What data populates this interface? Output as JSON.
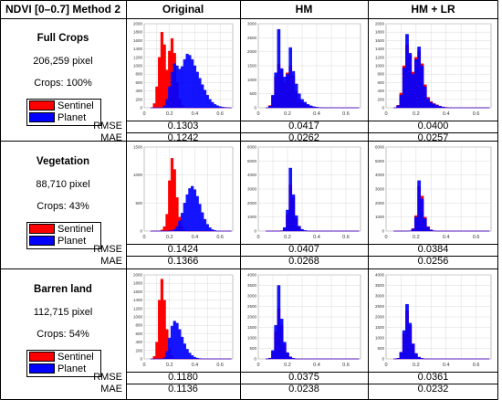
{
  "header": {
    "corner": "NDVI [0–0.7] Method 2",
    "columns": [
      "Original",
      "HM",
      "HM + LR"
    ]
  },
  "legend": {
    "sentinel": "Sentinel",
    "planet": "Planet",
    "sentinel_color": "#ff0000",
    "planet_color": "#0000ff"
  },
  "metric_labels": {
    "rmse": "RMSE",
    "mae": "MAE"
  },
  "rows": [
    {
      "title": "Full Crops",
      "pixels": "206,259 pixel",
      "crops": "Crops: 100%",
      "rmse": [
        "0.1303",
        "0.0417",
        "0.0400"
      ],
      "mae": [
        "0.1242",
        "0.0262",
        "0.0257"
      ]
    },
    {
      "title": "Vegetation",
      "pixels": "88,710 pixel",
      "crops": "Crops: 43%",
      "rmse": [
        "0.1424",
        "0.0407",
        "0.0384"
      ],
      "mae": [
        "0.1366",
        "0.0268",
        "0.0256"
      ]
    },
    {
      "title": "Barren land",
      "pixels": "112,715 pixel",
      "crops": "Crops: 54%",
      "rmse": [
        "0.1180",
        "0.0375",
        "0.0361"
      ],
      "mae": [
        "0.1136",
        "0.0238",
        "0.0232"
      ]
    }
  ],
  "chart_data": [
    {
      "type": "area",
      "row": "Full Crops",
      "column": "Original",
      "xlim": [
        0,
        0.7
      ],
      "ylim": [
        0,
        2000
      ],
      "yticks": [
        0,
        200,
        400,
        600,
        800,
        1000,
        1200,
        1400,
        1600,
        1800,
        2000
      ],
      "xticks": [
        0,
        0.2,
        0.4,
        0.6
      ],
      "grid": true,
      "x": [
        0.06,
        0.08,
        0.1,
        0.12,
        0.14,
        0.16,
        0.18,
        0.2,
        0.22,
        0.24,
        0.26,
        0.28,
        0.3,
        0.32,
        0.34,
        0.36,
        0.38,
        0.4,
        0.42,
        0.44,
        0.46,
        0.48,
        0.5,
        0.52,
        0.54,
        0.56,
        0.58,
        0.6,
        0.62,
        0.64,
        0.66,
        0.68
      ],
      "series": [
        {
          "name": "Sentinel",
          "values": [
            0,
            100,
            500,
            1200,
            1800,
            1500,
            900,
            1350,
            1650,
            1300,
            600,
            200,
            60,
            20,
            0,
            0,
            0,
            0,
            0,
            0,
            0,
            0,
            0,
            0,
            0,
            0,
            0,
            0,
            0,
            0,
            0,
            0
          ]
        },
        {
          "name": "Planet",
          "values": [
            0,
            0,
            0,
            0,
            0,
            50,
            200,
            500,
            850,
            1050,
            1000,
            920,
            980,
            1150,
            1280,
            1250,
            1150,
            1000,
            850,
            700,
            550,
            420,
            300,
            200,
            130,
            80,
            50,
            30,
            15,
            8,
            0,
            0
          ]
        }
      ]
    },
    {
      "type": "area",
      "row": "Full Crops",
      "column": "HM",
      "xlim": [
        0,
        0.7
      ],
      "ylim": [
        0,
        3000
      ],
      "yticks": [
        0,
        500,
        1000,
        1500,
        2000,
        2500,
        3000
      ],
      "xticks": [
        0,
        0.2,
        0.4,
        0.6
      ],
      "grid": true,
      "x": [
        0.06,
        0.08,
        0.1,
        0.12,
        0.14,
        0.16,
        0.18,
        0.2,
        0.22,
        0.24,
        0.26,
        0.28,
        0.3,
        0.32,
        0.34,
        0.36,
        0.38,
        0.4,
        0.42,
        0.44,
        0.46,
        0.48,
        0.5,
        0.52,
        0.54,
        0.56,
        0.58,
        0.6,
        0.62,
        0.64,
        0.66,
        0.68
      ],
      "series": [
        {
          "name": "Sentinel",
          "values": [
            0,
            80,
            400,
            1100,
            1550,
            1350,
            900,
            1250,
            1500,
            1150,
            600,
            300,
            200,
            150,
            100,
            60,
            30,
            15,
            5,
            0,
            0,
            0,
            0,
            0,
            0,
            0,
            0,
            0,
            0,
            0,
            0,
            0
          ]
        },
        {
          "name": "Planet",
          "values": [
            0,
            60,
            450,
            1250,
            2800,
            1400,
            1100,
            1200,
            2150,
            1300,
            850,
            500,
            300,
            200,
            120,
            70,
            40,
            20,
            10,
            5,
            0,
            0,
            0,
            0,
            0,
            0,
            0,
            0,
            0,
            0,
            0,
            0
          ]
        }
      ]
    },
    {
      "type": "area",
      "row": "Full Crops",
      "column": "HM + LR",
      "xlim": [
        0,
        0.7
      ],
      "ylim": [
        0,
        2000
      ],
      "yticks": [
        0,
        200,
        400,
        600,
        800,
        1000,
        1200,
        1400,
        1600,
        1800,
        2000
      ],
      "xticks": [
        0,
        0.2,
        0.4,
        0.6
      ],
      "grid": true,
      "x": [
        0.06,
        0.08,
        0.1,
        0.12,
        0.14,
        0.16,
        0.18,
        0.2,
        0.22,
        0.24,
        0.26,
        0.28,
        0.3,
        0.32,
        0.34,
        0.36,
        0.38,
        0.4,
        0.42,
        0.44,
        0.46,
        0.48,
        0.5,
        0.52,
        0.54,
        0.56,
        0.58,
        0.6,
        0.62,
        0.64,
        0.66,
        0.68
      ],
      "series": [
        {
          "name": "Sentinel",
          "values": [
            0,
            60,
            350,
            1000,
            1500,
            1250,
            850,
            1200,
            1350,
            1050,
            550,
            250,
            150,
            100,
            70,
            40,
            20,
            10,
            5,
            0,
            0,
            0,
            0,
            0,
            0,
            0,
            0,
            0,
            0,
            0,
            0,
            0
          ]
        },
        {
          "name": "Planet",
          "values": [
            0,
            50,
            300,
            950,
            1750,
            1300,
            800,
            1150,
            1450,
            1000,
            500,
            220,
            130,
            90,
            60,
            35,
            18,
            8,
            3,
            0,
            0,
            0,
            0,
            0,
            0,
            0,
            0,
            0,
            0,
            0,
            0,
            0
          ]
        }
      ]
    },
    {
      "type": "area",
      "row": "Vegetation",
      "column": "Original",
      "xlim": [
        0,
        0.7
      ],
      "ylim": [
        0,
        1500
      ],
      "yticks": [
        0,
        500,
        1000,
        1500
      ],
      "xticks": [
        0,
        0.2,
        0.4,
        0.6
      ],
      "grid": true,
      "x": [
        0.06,
        0.08,
        0.1,
        0.12,
        0.14,
        0.16,
        0.18,
        0.2,
        0.22,
        0.24,
        0.26,
        0.28,
        0.3,
        0.32,
        0.34,
        0.36,
        0.38,
        0.4,
        0.42,
        0.44,
        0.46,
        0.48,
        0.5,
        0.52,
        0.54,
        0.56,
        0.58,
        0.6,
        0.62,
        0.64,
        0.66,
        0.68
      ],
      "series": [
        {
          "name": "Sentinel",
          "values": [
            0,
            0,
            0,
            0,
            20,
            80,
            300,
            900,
            1300,
            1100,
            600,
            250,
            80,
            20,
            0,
            0,
            0,
            0,
            0,
            0,
            0,
            0,
            0,
            0,
            0,
            0,
            0,
            0,
            0,
            0,
            0,
            0
          ]
        },
        {
          "name": "Planet",
          "values": [
            0,
            0,
            0,
            0,
            0,
            0,
            0,
            0,
            10,
            30,
            80,
            180,
            320,
            500,
            650,
            760,
            800,
            740,
            620,
            480,
            330,
            210,
            120,
            60,
            25,
            10,
            0,
            0,
            0,
            0,
            0,
            0
          ]
        }
      ]
    },
    {
      "type": "area",
      "row": "Vegetation",
      "column": "HM",
      "xlim": [
        0,
        0.7
      ],
      "ylim": [
        0,
        6000
      ],
      "yticks": [
        0,
        1000,
        2000,
        3000,
        4000,
        5000,
        6000
      ],
      "xticks": [
        0,
        0.2,
        0.4,
        0.6
      ],
      "grid": true,
      "x": [
        0.06,
        0.08,
        0.1,
        0.12,
        0.14,
        0.16,
        0.18,
        0.2,
        0.22,
        0.24,
        0.26,
        0.28,
        0.3,
        0.32,
        0.34,
        0.36,
        0.38,
        0.4,
        0.42,
        0.44,
        0.46,
        0.48,
        0.5,
        0.52,
        0.54,
        0.56,
        0.58,
        0.6,
        0.62,
        0.64,
        0.66,
        0.68
      ],
      "series": [
        {
          "name": "Sentinel",
          "values": [
            0,
            0,
            0,
            0,
            0,
            30,
            200,
            1200,
            3300,
            2400,
            900,
            300,
            80,
            20,
            0,
            0,
            0,
            0,
            0,
            0,
            0,
            0,
            0,
            0,
            0,
            0,
            0,
            0,
            0,
            0,
            0,
            0
          ]
        },
        {
          "name": "Planet",
          "values": [
            0,
            0,
            0,
            0,
            0,
            20,
            250,
            1500,
            4500,
            2600,
            1100,
            350,
            120,
            40,
            10,
            0,
            0,
            0,
            0,
            0,
            0,
            0,
            0,
            0,
            0,
            0,
            0,
            0,
            0,
            0,
            0,
            0
          ]
        }
      ]
    },
    {
      "type": "area",
      "row": "Vegetation",
      "column": "HM + LR",
      "xlim": [
        0,
        0.7
      ],
      "ylim": [
        0,
        6000
      ],
      "yticks": [
        0,
        1000,
        2000,
        3000,
        4000,
        5000,
        6000
      ],
      "xticks": [
        0,
        0.2,
        0.4,
        0.6
      ],
      "grid": true,
      "x": [
        0.06,
        0.08,
        0.1,
        0.12,
        0.14,
        0.16,
        0.18,
        0.2,
        0.22,
        0.24,
        0.26,
        0.28,
        0.3,
        0.32,
        0.34,
        0.36,
        0.38,
        0.4,
        0.42,
        0.44,
        0.46,
        0.48,
        0.5,
        0.52,
        0.54,
        0.56,
        0.58,
        0.6,
        0.62,
        0.64,
        0.66,
        0.68
      ],
      "series": [
        {
          "name": "Sentinel",
          "values": [
            0,
            0,
            0,
            0,
            0,
            20,
            180,
            1100,
            3200,
            2500,
            1000,
            320,
            90,
            25,
            0,
            0,
            0,
            0,
            0,
            0,
            0,
            0,
            0,
            0,
            0,
            0,
            0,
            0,
            0,
            0,
            0,
            0
          ]
        },
        {
          "name": "Planet",
          "values": [
            0,
            0,
            0,
            0,
            0,
            15,
            150,
            1000,
            3600,
            2300,
            900,
            280,
            80,
            20,
            0,
            0,
            0,
            0,
            0,
            0,
            0,
            0,
            0,
            0,
            0,
            0,
            0,
            0,
            0,
            0,
            0,
            0
          ]
        }
      ]
    },
    {
      "type": "area",
      "row": "Barren land",
      "column": "Original",
      "xlim": [
        0,
        0.7
      ],
      "ylim": [
        0,
        2000
      ],
      "yticks": [
        0,
        200,
        400,
        600,
        800,
        1000,
        1200,
        1400,
        1600,
        1800,
        2000
      ],
      "xticks": [
        0,
        0.2,
        0.4,
        0.6
      ],
      "grid": true,
      "x": [
        0.06,
        0.08,
        0.1,
        0.12,
        0.14,
        0.16,
        0.18,
        0.2,
        0.22,
        0.24,
        0.26,
        0.28,
        0.3,
        0.32,
        0.34,
        0.36,
        0.38,
        0.4,
        0.42,
        0.44,
        0.46,
        0.48,
        0.5,
        0.52,
        0.54,
        0.56,
        0.58,
        0.6,
        0.62,
        0.64,
        0.66,
        0.68
      ],
      "series": [
        {
          "name": "Sentinel",
          "values": [
            0,
            60,
            400,
            1400,
            1900,
            1400,
            700,
            250,
            80,
            20,
            0,
            0,
            0,
            0,
            0,
            0,
            0,
            0,
            0,
            0,
            0,
            0,
            0,
            0,
            0,
            0,
            0,
            0,
            0,
            0,
            0,
            0
          ]
        },
        {
          "name": "Planet",
          "values": [
            0,
            0,
            0,
            0,
            0,
            30,
            180,
            500,
            780,
            900,
            850,
            700,
            520,
            360,
            230,
            140,
            80,
            40,
            20,
            8,
            0,
            0,
            0,
            0,
            0,
            0,
            0,
            0,
            0,
            0,
            0,
            0
          ]
        }
      ]
    },
    {
      "type": "area",
      "row": "Barren land",
      "column": "HM",
      "xlim": [
        0,
        0.7
      ],
      "ylim": [
        0,
        4000
      ],
      "yticks": [
        0,
        500,
        1000,
        1500,
        2000,
        2500,
        3000,
        3500,
        4000
      ],
      "xticks": [
        0,
        0.2,
        0.4,
        0.6
      ],
      "grid": true,
      "x": [
        0.06,
        0.08,
        0.1,
        0.12,
        0.14,
        0.16,
        0.18,
        0.2,
        0.22,
        0.24,
        0.26,
        0.28,
        0.3,
        0.32,
        0.34,
        0.36,
        0.38,
        0.4,
        0.42,
        0.44,
        0.46,
        0.48,
        0.5,
        0.52,
        0.54,
        0.56,
        0.58,
        0.6,
        0.62,
        0.64,
        0.66,
        0.68
      ],
      "series": [
        {
          "name": "Sentinel",
          "values": [
            0,
            40,
            350,
            1300,
            2400,
            1600,
            700,
            250,
            80,
            25,
            0,
            0,
            0,
            0,
            0,
            0,
            0,
            0,
            0,
            0,
            0,
            0,
            0,
            0,
            0,
            0,
            0,
            0,
            0,
            0,
            0,
            0
          ]
        },
        {
          "name": "Planet",
          "values": [
            0,
            30,
            400,
            1600,
            3500,
            1900,
            800,
            300,
            100,
            30,
            0,
            0,
            0,
            0,
            0,
            0,
            0,
            0,
            0,
            0,
            0,
            0,
            0,
            0,
            0,
            0,
            0,
            0,
            0,
            0,
            0,
            0
          ]
        }
      ]
    },
    {
      "type": "area",
      "row": "Barren land",
      "column": "HM + LR",
      "xlim": [
        0,
        0.7
      ],
      "ylim": [
        0,
        4000
      ],
      "yticks": [
        0,
        500,
        1000,
        1500,
        2000,
        2500,
        3000,
        3500,
        4000
      ],
      "xticks": [
        0,
        0.2,
        0.4,
        0.6
      ],
      "grid": true,
      "x": [
        0.06,
        0.08,
        0.1,
        0.12,
        0.14,
        0.16,
        0.18,
        0.2,
        0.22,
        0.24,
        0.26,
        0.28,
        0.3,
        0.32,
        0.34,
        0.36,
        0.38,
        0.4,
        0.42,
        0.44,
        0.46,
        0.48,
        0.5,
        0.52,
        0.54,
        0.56,
        0.58,
        0.6,
        0.62,
        0.64,
        0.66,
        0.68
      ],
      "series": [
        {
          "name": "Sentinel",
          "values": [
            0,
            30,
            300,
            1200,
            2300,
            1600,
            700,
            250,
            80,
            25,
            0,
            0,
            0,
            0,
            0,
            0,
            0,
            0,
            0,
            0,
            0,
            0,
            0,
            0,
            0,
            0,
            0,
            0,
            0,
            0,
            0,
            0
          ]
        },
        {
          "name": "Planet",
          "values": [
            0,
            25,
            320,
            1350,
            2600,
            1700,
            720,
            260,
            85,
            25,
            0,
            0,
            0,
            0,
            0,
            0,
            0,
            0,
            0,
            0,
            0,
            0,
            0,
            0,
            0,
            0,
            0,
            0,
            0,
            0,
            0,
            0
          ]
        }
      ]
    }
  ]
}
